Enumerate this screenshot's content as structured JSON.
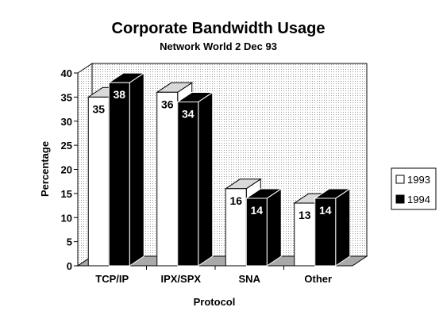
{
  "chart_data": {
    "type": "bar",
    "title": "Corporate Bandwidth Usage",
    "subtitle": "Network World 2 Dec 93",
    "xlabel": "Protocol",
    "ylabel": "Percentage",
    "categories": [
      "TCP/IP",
      "IPX/SPX",
      "SNA",
      "Other"
    ],
    "series": [
      {
        "name": "1993",
        "values": [
          35,
          36,
          16,
          13
        ]
      },
      {
        "name": "1994",
        "values": [
          38,
          34,
          14,
          14
        ]
      }
    ],
    "ylim": [
      0,
      40
    ],
    "yticks": [
      0,
      5,
      10,
      15,
      20,
      25,
      30,
      35,
      40
    ],
    "grid": false,
    "legend_position": "right",
    "style": "3d-bar",
    "colors": {
      "series_1993": "#ffffff",
      "series_1994": "#000000",
      "floor": "#a9a9a9",
      "wall_dots": "#bdbdbd"
    }
  }
}
